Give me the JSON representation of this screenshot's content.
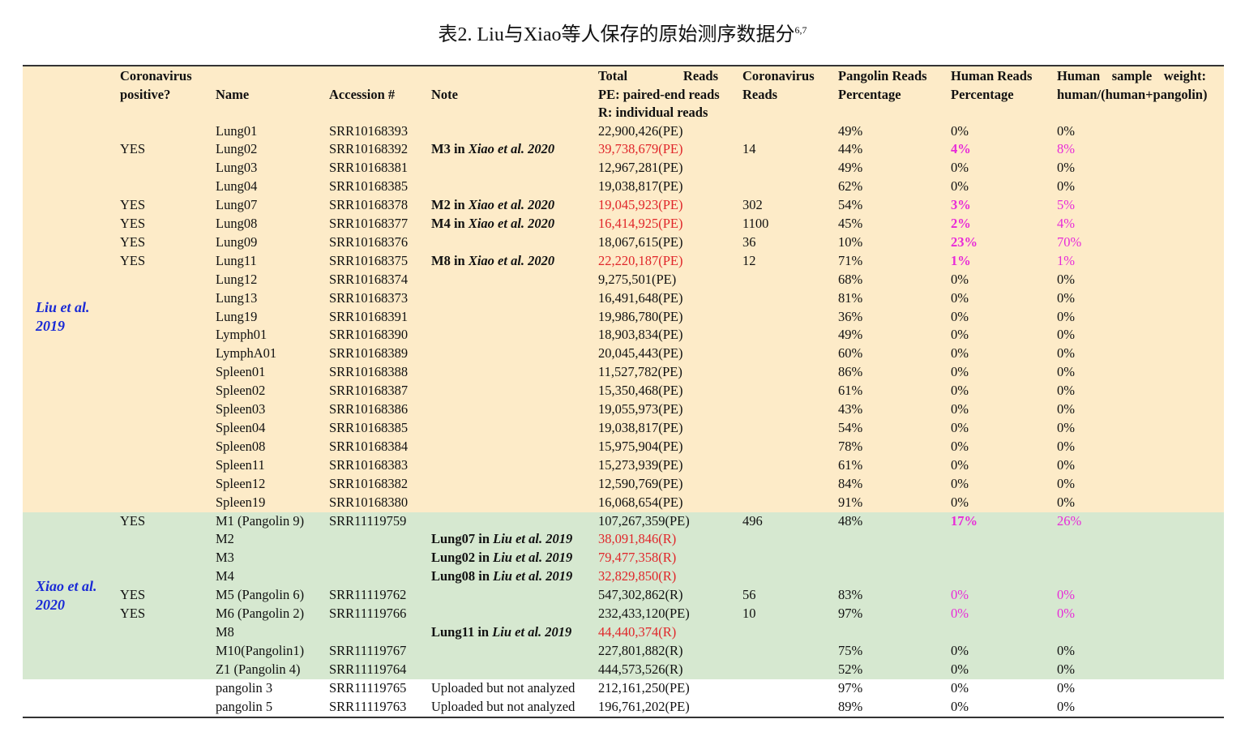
{
  "title": {
    "main": "表2. Liu与Xiao等人保存的原始测序数据分",
    "sup": "6,7"
  },
  "header": {
    "cov_pos_1": "Coronavirus",
    "cov_pos_2": "positive?",
    "name": "Name",
    "accession": "Accession #",
    "note": "Note",
    "total_1a": "Total",
    "total_1b": "Reads",
    "total_2": "PE: paired-end reads",
    "total_3": "R: individual reads",
    "cov_reads_1": "Coronavirus",
    "cov_reads_2": "Reads",
    "pangolin_1": "Pangolin Reads",
    "pangolin_2": "Percentage",
    "human_1": "Human Reads",
    "human_2": "Percentage",
    "weight_1a": "Human",
    "weight_1b": "sample",
    "weight_1c": "weight:",
    "weight_2": "human/(human+pangolin)"
  },
  "groups": {
    "liu": {
      "ref_1": "Liu et al.",
      "ref_2": "2019"
    },
    "xiao": {
      "ref_1": "Xiao et al.",
      "ref_2": "2020"
    }
  },
  "colors": {
    "liu_bg": "#fdebc8",
    "xiao_bg": "#d6e8d0",
    "red": "#e0262a",
    "magenta": "#e82ad8",
    "ref_blue": "#1a2ad6"
  },
  "rows": [
    {
      "group": "liu",
      "pos": "",
      "name": "Lung01",
      "acc": "SRR10168393",
      "note_pre": "",
      "note_ref": "",
      "total": "22,900,426(PE)",
      "total_red": false,
      "cov": "",
      "pang": "49%",
      "human": "0%",
      "weight": "0%",
      "hl": ""
    },
    {
      "group": "liu",
      "pos": "YES",
      "name": "Lung02",
      "acc": "SRR10168392",
      "note_pre": "M3 in ",
      "note_ref": "Xiao et al. 2020",
      "total": "39,738,679(PE)",
      "total_red": true,
      "cov": "14",
      "pang": "44%",
      "human": "4%",
      "weight": "8%",
      "hl": "magb"
    },
    {
      "group": "liu",
      "pos": "",
      "name": "Lung03",
      "acc": "SRR10168381",
      "note_pre": "",
      "note_ref": "",
      "total": "12,967,281(PE)",
      "total_red": false,
      "cov": "",
      "pang": "49%",
      "human": "0%",
      "weight": "0%",
      "hl": ""
    },
    {
      "group": "liu",
      "pos": "",
      "name": "Lung04",
      "acc": "SRR10168385",
      "note_pre": "",
      "note_ref": "",
      "total": "19,038,817(PE)",
      "total_red": false,
      "cov": "",
      "pang": "62%",
      "human": "0%",
      "weight": "0%",
      "hl": ""
    },
    {
      "group": "liu",
      "pos": "YES",
      "name": "Lung07",
      "acc": "SRR10168378",
      "note_pre": "M2 in ",
      "note_ref": "Xiao et al. 2020",
      "total": "19,045,923(PE)",
      "total_red": true,
      "cov": "302",
      "pang": "54%",
      "human": "3%",
      "weight": "5%",
      "hl": "magb"
    },
    {
      "group": "liu",
      "pos": "YES",
      "name": "Lung08",
      "acc": "SRR10168377",
      "note_pre": "M4 in ",
      "note_ref": "Xiao et al. 2020",
      "total": "16,414,925(PE)",
      "total_red": true,
      "cov": "1100",
      "pang": "45%",
      "human": "2%",
      "weight": "4%",
      "hl": "magb"
    },
    {
      "group": "liu",
      "pos": "YES",
      "name": "Lung09",
      "acc": "SRR10168376",
      "note_pre": "",
      "note_ref": "",
      "total": "18,067,615(PE)",
      "total_red": false,
      "cov": "36",
      "pang": "10%",
      "human": "23%",
      "weight": "70%",
      "hl": "magb"
    },
    {
      "group": "liu",
      "pos": "YES",
      "name": "Lung11",
      "acc": "SRR10168375",
      "note_pre": "M8 in ",
      "note_ref": "Xiao et al. 2020",
      "total": "22,220,187(PE)",
      "total_red": true,
      "cov": "12",
      "pang": "71%",
      "human": "1%",
      "weight": "1%",
      "hl": "magb"
    },
    {
      "group": "liu",
      "pos": "",
      "name": "Lung12",
      "acc": "SRR10168374",
      "note_pre": "",
      "note_ref": "",
      "total": "9,275,501(PE)",
      "total_red": false,
      "cov": "",
      "pang": "68%",
      "human": "0%",
      "weight": "0%",
      "hl": ""
    },
    {
      "group": "liu",
      "pos": "",
      "name": "Lung13",
      "acc": "SRR10168373",
      "note_pre": "",
      "note_ref": "",
      "total": "16,491,648(PE)",
      "total_red": false,
      "cov": "",
      "pang": "81%",
      "human": "0%",
      "weight": "0%",
      "hl": ""
    },
    {
      "group": "liu",
      "pos": "",
      "name": "Lung19",
      "acc": "SRR10168391",
      "note_pre": "",
      "note_ref": "",
      "total": "19,986,780(PE)",
      "total_red": false,
      "cov": "",
      "pang": "36%",
      "human": "0%",
      "weight": "0%",
      "hl": ""
    },
    {
      "group": "liu",
      "pos": "",
      "name": "Lymph01",
      "acc": "SRR10168390",
      "note_pre": "",
      "note_ref": "",
      "total": "18,903,834(PE)",
      "total_red": false,
      "cov": "",
      "pang": "49%",
      "human": "0%",
      "weight": "0%",
      "hl": ""
    },
    {
      "group": "liu",
      "pos": "",
      "name": "LymphA01",
      "acc": "SRR10168389",
      "note_pre": "",
      "note_ref": "",
      "total": "20,045,443(PE)",
      "total_red": false,
      "cov": "",
      "pang": "60%",
      "human": "0%",
      "weight": "0%",
      "hl": ""
    },
    {
      "group": "liu",
      "pos": "",
      "name": "Spleen01",
      "acc": "SRR10168388",
      "note_pre": "",
      "note_ref": "",
      "total": "11,527,782(PE)",
      "total_red": false,
      "cov": "",
      "pang": "86%",
      "human": "0%",
      "weight": "0%",
      "hl": ""
    },
    {
      "group": "liu",
      "pos": "",
      "name": "Spleen02",
      "acc": "SRR10168387",
      "note_pre": "",
      "note_ref": "",
      "total": "15,350,468(PE)",
      "total_red": false,
      "cov": "",
      "pang": "61%",
      "human": "0%",
      "weight": "0%",
      "hl": ""
    },
    {
      "group": "liu",
      "pos": "",
      "name": "Spleen03",
      "acc": "SRR10168386",
      "note_pre": "",
      "note_ref": "",
      "total": "19,055,973(PE)",
      "total_red": false,
      "cov": "",
      "pang": "43%",
      "human": "0%",
      "weight": "0%",
      "hl": ""
    },
    {
      "group": "liu",
      "pos": "",
      "name": "Spleen04",
      "acc": "SRR10168385",
      "note_pre": "",
      "note_ref": "",
      "total": "19,038,817(PE)",
      "total_red": false,
      "cov": "",
      "pang": "54%",
      "human": "0%",
      "weight": "0%",
      "hl": ""
    },
    {
      "group": "liu",
      "pos": "",
      "name": "Spleen08",
      "acc": "SRR10168384",
      "note_pre": "",
      "note_ref": "",
      "total": "15,975,904(PE)",
      "total_red": false,
      "cov": "",
      "pang": "78%",
      "human": "0%",
      "weight": "0%",
      "hl": ""
    },
    {
      "group": "liu",
      "pos": "",
      "name": "Spleen11",
      "acc": "SRR10168383",
      "note_pre": "",
      "note_ref": "",
      "total": "15,273,939(PE)",
      "total_red": false,
      "cov": "",
      "pang": "61%",
      "human": "0%",
      "weight": "0%",
      "hl": ""
    },
    {
      "group": "liu",
      "pos": "",
      "name": "Spleen12",
      "acc": "SRR10168382",
      "note_pre": "",
      "note_ref": "",
      "total": "12,590,769(PE)",
      "total_red": false,
      "cov": "",
      "pang": "84%",
      "human": "0%",
      "weight": "0%",
      "hl": ""
    },
    {
      "group": "liu",
      "pos": "",
      "name": "Spleen19",
      "acc": "SRR10168380",
      "note_pre": "",
      "note_ref": "",
      "total": "16,068,654(PE)",
      "total_red": false,
      "cov": "",
      "pang": "91%",
      "human": "0%",
      "weight": "0%",
      "hl": ""
    },
    {
      "group": "xiao",
      "pos": "YES",
      "name": "M1 (Pangolin 9)",
      "acc": "SRR11119759",
      "note_pre": "",
      "note_ref": "",
      "total": "107,267,359(PE)",
      "total_red": false,
      "cov": "496",
      "pang": "48%",
      "human": "17%",
      "weight": "26%",
      "hl": "magb-human-mag-weight"
    },
    {
      "group": "xiao",
      "pos": "",
      "name": "M2",
      "acc": "",
      "note_pre": "Lung07 in ",
      "note_ref": "Liu et al. 2019",
      "total": "38,091,846(R)",
      "total_red": true,
      "cov": "",
      "pang": "",
      "human": "",
      "weight": "",
      "hl": ""
    },
    {
      "group": "xiao",
      "pos": "",
      "name": "M3",
      "acc": "",
      "note_pre": "Lung02 in ",
      "note_ref": "Liu et al. 2019",
      "total": "79,477,358(R)",
      "total_red": true,
      "cov": "",
      "pang": "",
      "human": "",
      "weight": "",
      "hl": ""
    },
    {
      "group": "xiao",
      "pos": "",
      "name": "M4",
      "acc": "",
      "note_pre": "Lung08 in ",
      "note_ref": "Liu et al. 2019",
      "total": "32,829,850(R)",
      "total_red": true,
      "cov": "",
      "pang": "",
      "human": "",
      "weight": "",
      "hl": ""
    },
    {
      "group": "xiao",
      "pos": "YES",
      "name": "M5 (Pangolin 6)",
      "acc": "SRR11119762",
      "note_pre": "",
      "note_ref": "",
      "total": "547,302,862(R)",
      "total_red": false,
      "cov": "56",
      "pang": "83%",
      "human": "0%",
      "weight": "0%",
      "hl": "mag"
    },
    {
      "group": "xiao",
      "pos": "YES",
      "name": "M6 (Pangolin 2)",
      "acc": "SRR11119766",
      "note_pre": "",
      "note_ref": "",
      "total": "232,433,120(PE)",
      "total_red": false,
      "cov": "10",
      "pang": "97%",
      "human": "0%",
      "weight": "0%",
      "hl": "mag"
    },
    {
      "group": "xiao",
      "pos": "",
      "name": "M8",
      "acc": "",
      "note_pre": "Lung11 in ",
      "note_ref": "Liu et al. 2019",
      "total": "44,440,374(R)",
      "total_red": true,
      "cov": "",
      "pang": "",
      "human": "",
      "weight": "",
      "hl": ""
    },
    {
      "group": "xiao",
      "pos": "",
      "name": "M10(Pangolin1)",
      "acc": "SRR11119767",
      "note_pre": "",
      "note_ref": "",
      "total": "227,801,882(R)",
      "total_red": false,
      "cov": "",
      "pang": "75%",
      "human": "0%",
      "weight": "0%",
      "hl": ""
    },
    {
      "group": "xiao",
      "pos": "",
      "name": "Z1 (Pangolin 4)",
      "acc": "SRR11119764",
      "note_pre": "",
      "note_ref": "",
      "total": "444,573,526(R)",
      "total_red": false,
      "cov": "",
      "pang": "52%",
      "human": "0%",
      "weight": "0%",
      "hl": ""
    },
    {
      "group": "other",
      "pos": "",
      "name": "pangolin 3",
      "acc": "SRR11119765",
      "note_pre": "Uploaded but not analyzed",
      "note_ref": "",
      "note_plain": true,
      "total": "212,161,250(PE)",
      "total_red": false,
      "cov": "",
      "pang": "97%",
      "human": "0%",
      "weight": "0%",
      "hl": ""
    },
    {
      "group": "other",
      "pos": "",
      "name": "pangolin 5",
      "acc": "SRR11119763",
      "note_pre": "Uploaded but not analyzed",
      "note_ref": "",
      "note_plain": true,
      "total": "196,761,202(PE)",
      "total_red": false,
      "cov": "",
      "pang": "89%",
      "human": "0%",
      "weight": "0%",
      "hl": ""
    }
  ]
}
